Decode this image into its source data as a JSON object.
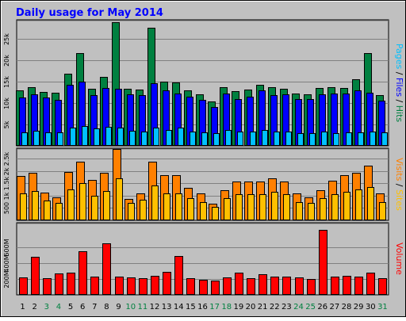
{
  "title": "Daily usage for May 2014",
  "colors": {
    "background": "#c0c0c0",
    "title": "#0000ff",
    "hits": "#008040",
    "files": "#0000ff",
    "pages": "#00c0ff",
    "visits": "#ff8000",
    "sites": "#ffc000",
    "volume": "#ff0000",
    "weekend_day": "#008040",
    "weekday": "#000000"
  },
  "chart_data": [
    {
      "type": "bar",
      "panel": "hits-files-pages",
      "categories": [
        "1",
        "2",
        "3",
        "4",
        "5",
        "6",
        "7",
        "8",
        "9",
        "10",
        "11",
        "12",
        "13",
        "14",
        "15",
        "16",
        "17",
        "18",
        "19",
        "20",
        "21",
        "22",
        "23",
        "24",
        "25",
        "26",
        "27",
        "28",
        "29",
        "30",
        "31"
      ],
      "weekend_days": [
        "3",
        "4",
        "10",
        "11",
        "17",
        "18",
        "24",
        "25",
        "31"
      ],
      "y_ticks": [
        "5k",
        "10k",
        "15k",
        "20k",
        "25k"
      ],
      "y_tick_values": [
        5000,
        10000,
        15000,
        20000,
        25000
      ],
      "ylim": [
        0,
        29500
      ],
      "side_label": [
        {
          "text": "Pages",
          "color": "#00c0ff"
        },
        {
          "text": " / ",
          "color": "#000000"
        },
        {
          "text": "Files",
          "color": "#0000ff"
        },
        {
          "text": " / ",
          "color": "#000000"
        },
        {
          "text": "Hits",
          "color": "#008040"
        }
      ],
      "series": [
        {
          "name": "Hits",
          "color": "#008040",
          "values": [
            13000,
            13800,
            12600,
            12500,
            16800,
            21700,
            13400,
            16200,
            29000,
            13300,
            13200,
            27600,
            15000,
            14800,
            13000,
            12000,
            10400,
            13800,
            12800,
            13200,
            14300,
            13700,
            13300,
            12200,
            12100,
            13600,
            13800,
            13500,
            15500,
            21800,
            11900
          ]
        },
        {
          "name": "Files",
          "color": "#0000ff",
          "values": [
            11300,
            12100,
            11300,
            10800,
            14300,
            15100,
            11800,
            13500,
            13300,
            12100,
            11800,
            14600,
            13000,
            12300,
            11500,
            10700,
            9000,
            12200,
            11000,
            11500,
            13000,
            11800,
            12100,
            11000,
            11000,
            12100,
            12200,
            12200,
            12900,
            12500,
            10500
          ]
        },
        {
          "name": "Pages",
          "color": "#00c0ff",
          "values": [
            3200,
            3600,
            3200,
            3100,
            4200,
            4700,
            4000,
            4500,
            4200,
            3600,
            3300,
            4300,
            3700,
            4300,
            3300,
            3100,
            3000,
            3800,
            3300,
            3400,
            3800,
            3400,
            3400,
            3000,
            3000,
            3400,
            2900,
            3200,
            3200,
            3300,
            3100
          ]
        }
      ]
    },
    {
      "type": "bar",
      "panel": "visits-sites",
      "categories": [
        "1",
        "2",
        "3",
        "4",
        "5",
        "6",
        "7",
        "8",
        "9",
        "10",
        "11",
        "12",
        "13",
        "14",
        "15",
        "16",
        "17",
        "18",
        "19",
        "20",
        "21",
        "22",
        "23",
        "24",
        "25",
        "26",
        "27",
        "28",
        "29",
        "30",
        "31"
      ],
      "y_ticks": [
        "500",
        "1k",
        "1.5k",
        "2k",
        "2.5k"
      ],
      "y_tick_values": [
        500,
        1000,
        1500,
        2000,
        2500
      ],
      "ylim": [
        0,
        2920
      ],
      "side_label": [
        {
          "text": "Visits",
          "color": "#ff8000"
        },
        {
          "text": " / ",
          "color": "#000000"
        },
        {
          "text": "Sites",
          "color": "#ffc000"
        }
      ],
      "series": [
        {
          "name": "Visits",
          "color": "#ff8000",
          "values": [
            1800,
            1940,
            1110,
            930,
            1950,
            2380,
            1640,
            1940,
            2900,
            860,
            1100,
            2380,
            1830,
            1830,
            1330,
            1080,
            680,
            1220,
            1580,
            1580,
            1580,
            1700,
            1580,
            1080,
            930,
            1220,
            1620,
            1830,
            1920,
            2200,
            1080
          ]
        },
        {
          "name": "Sites",
          "color": "#ffc000",
          "values": [
            1100,
            1200,
            800,
            700,
            1250,
            1500,
            1000,
            1200,
            1700,
            700,
            850,
            1400,
            1100,
            1100,
            900,
            750,
            550,
            900,
            1050,
            1050,
            1050,
            1150,
            1050,
            750,
            700,
            900,
            1050,
            1150,
            1250,
            1350,
            750
          ]
        }
      ]
    },
    {
      "type": "bar",
      "panel": "volume",
      "categories": [
        "1",
        "2",
        "3",
        "4",
        "5",
        "6",
        "7",
        "8",
        "9",
        "10",
        "11",
        "12",
        "13",
        "14",
        "15",
        "16",
        "17",
        "18",
        "19",
        "20",
        "21",
        "22",
        "23",
        "24",
        "25",
        "26",
        "27",
        "28",
        "29",
        "30",
        "31"
      ],
      "y_ticks": [
        "200M",
        "400M",
        "600M"
      ],
      "y_tick_values": [
        200,
        400,
        600
      ],
      "ylim": [
        0,
        905
      ],
      "side_label": [
        {
          "text": "Volume",
          "color": "#ff0000"
        }
      ],
      "series": [
        {
          "name": "Volume",
          "color": "#ff0000",
          "values": [
            220,
            480,
            210,
            270,
            280,
            550,
            230,
            650,
            230,
            220,
            210,
            240,
            290,
            490,
            210,
            190,
            180,
            220,
            280,
            210,
            260,
            230,
            230,
            220,
            200,
            820,
            230,
            240,
            230,
            280,
            210
          ]
        }
      ]
    }
  ]
}
